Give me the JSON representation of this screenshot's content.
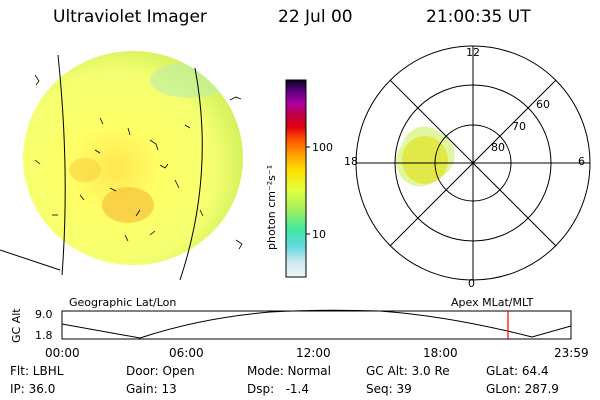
{
  "header": {
    "instrument": "Ultraviolet Imager",
    "date": "22 Jul 00",
    "time": "21:00:35 UT"
  },
  "colorbar": {
    "unit_label": "photon cm⁻²s⁻¹",
    "ticks": [
      "100",
      "10"
    ]
  },
  "polar_plot": {
    "mlt_labels": [
      "12",
      "18",
      "6",
      "0"
    ],
    "mlat_labels": [
      "60",
      "70",
      "80"
    ],
    "caption": "Apex MLat/MLT"
  },
  "map_caption": "Geographic Lat/Lon",
  "altitude_plot": {
    "ylabel": "GC Alt",
    "yticks": [
      "9.0",
      "1.8"
    ],
    "xticks": [
      "00:00",
      "06:00",
      "12:00",
      "18:00",
      "23:59"
    ]
  },
  "status": {
    "filter": "Flt: LBHL",
    "door": "Door: Open",
    "mode": "Mode: Normal",
    "gc_alt": "GC Alt: 3.0 Re",
    "glat": "GLat: 64.4",
    "ip": "IP: 36.0",
    "gain": "Gain: 13",
    "dsp": "Dsp:   -1.4",
    "seq": "Seq: 39",
    "glon": "GLon: 287.9"
  },
  "colors": {
    "background": "#ffffff",
    "image_yellow": "#ffff66",
    "image_green": "#c8f050",
    "image_orange": "#f0a000",
    "marker_red": "#ff0000"
  }
}
